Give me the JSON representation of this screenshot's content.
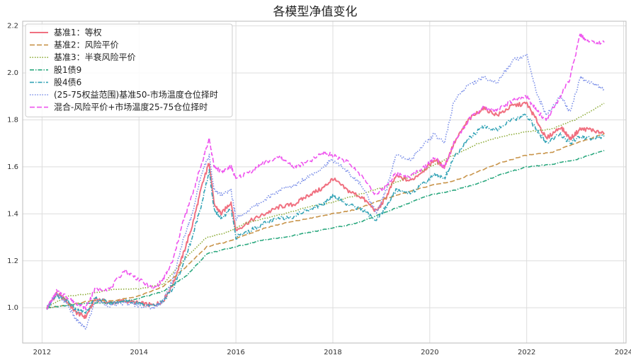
{
  "chart_data": {
    "type": "line",
    "title": "各模型净值变化",
    "xlabel": "",
    "ylabel": "",
    "xlim": [
      2011.6,
      2024.05
    ],
    "ylim": [
      0.85,
      2.22
    ],
    "xticks": [
      "2012",
      "2014",
      "2016",
      "2018",
      "2020",
      "2022",
      "2024"
    ],
    "yticks": [
      "1.0",
      "1.2",
      "1.4",
      "1.6",
      "1.8",
      "2.0",
      "2.2"
    ],
    "grid": true,
    "legend_position": "top-left",
    "series": [
      {
        "name": "基准1：等权",
        "color": "#f07080",
        "style": "solid",
        "points": [
          [
            2012.1,
            1.0
          ],
          [
            2012.3,
            1.06
          ],
          [
            2012.5,
            1.03
          ],
          [
            2012.7,
            0.98
          ],
          [
            2012.9,
            0.96
          ],
          [
            2013.1,
            1.04
          ],
          [
            2013.4,
            1.02
          ],
          [
            2013.7,
            1.03
          ],
          [
            2014.0,
            1.02
          ],
          [
            2014.3,
            1.01
          ],
          [
            2014.5,
            1.03
          ],
          [
            2014.7,
            1.1
          ],
          [
            2014.9,
            1.22
          ],
          [
            2015.1,
            1.35
          ],
          [
            2015.3,
            1.52
          ],
          [
            2015.45,
            1.62
          ],
          [
            2015.55,
            1.44
          ],
          [
            2015.7,
            1.4
          ],
          [
            2015.9,
            1.45
          ],
          [
            2016.0,
            1.33
          ],
          [
            2016.3,
            1.37
          ],
          [
            2016.6,
            1.4
          ],
          [
            2016.9,
            1.43
          ],
          [
            2017.2,
            1.44
          ],
          [
            2017.5,
            1.48
          ],
          [
            2017.8,
            1.51
          ],
          [
            2018.0,
            1.55
          ],
          [
            2018.3,
            1.5
          ],
          [
            2018.6,
            1.47
          ],
          [
            2018.9,
            1.41
          ],
          [
            2019.1,
            1.47
          ],
          [
            2019.3,
            1.56
          ],
          [
            2019.6,
            1.54
          ],
          [
            2019.9,
            1.59
          ],
          [
            2020.1,
            1.63
          ],
          [
            2020.3,
            1.6
          ],
          [
            2020.5,
            1.7
          ],
          [
            2020.8,
            1.8
          ],
          [
            2021.1,
            1.85
          ],
          [
            2021.4,
            1.82
          ],
          [
            2021.7,
            1.86
          ],
          [
            2022.0,
            1.87
          ],
          [
            2022.2,
            1.8
          ],
          [
            2022.4,
            1.72
          ],
          [
            2022.7,
            1.77
          ],
          [
            2022.9,
            1.72
          ],
          [
            2023.1,
            1.76
          ],
          [
            2023.3,
            1.76
          ],
          [
            2023.6,
            1.74
          ]
        ]
      },
      {
        "name": "基准2：风险平价",
        "color": "#c8944a",
        "style": "dashed",
        "points": [
          [
            2012.1,
            1.0
          ],
          [
            2012.5,
            1.01
          ],
          [
            2013.0,
            1.03
          ],
          [
            2013.5,
            1.03
          ],
          [
            2014.0,
            1.05
          ],
          [
            2014.5,
            1.09
          ],
          [
            2015.0,
            1.18
          ],
          [
            2015.4,
            1.26
          ],
          [
            2015.8,
            1.28
          ],
          [
            2016.2,
            1.31
          ],
          [
            2016.6,
            1.34
          ],
          [
            2017.0,
            1.36
          ],
          [
            2017.5,
            1.38
          ],
          [
            2018.0,
            1.4
          ],
          [
            2018.5,
            1.42
          ],
          [
            2019.0,
            1.46
          ],
          [
            2019.5,
            1.49
          ],
          [
            2020.0,
            1.52
          ],
          [
            2020.5,
            1.54
          ],
          [
            2021.0,
            1.58
          ],
          [
            2021.5,
            1.62
          ],
          [
            2022.0,
            1.65
          ],
          [
            2022.5,
            1.66
          ],
          [
            2023.0,
            1.7
          ],
          [
            2023.6,
            1.74
          ]
        ]
      },
      {
        "name": "基准3：半衰风险平价",
        "color": "#8fad3c",
        "style": "dotted",
        "points": [
          [
            2012.1,
            1.0
          ],
          [
            2012.5,
            1.05
          ],
          [
            2013.0,
            1.06
          ],
          [
            2013.5,
            1.08
          ],
          [
            2014.0,
            1.08
          ],
          [
            2014.5,
            1.1
          ],
          [
            2015.0,
            1.22
          ],
          [
            2015.4,
            1.3
          ],
          [
            2015.8,
            1.32
          ],
          [
            2016.2,
            1.36
          ],
          [
            2016.6,
            1.38
          ],
          [
            2017.0,
            1.4
          ],
          [
            2017.5,
            1.43
          ],
          [
            2018.0,
            1.45
          ],
          [
            2018.5,
            1.48
          ],
          [
            2019.0,
            1.51
          ],
          [
            2019.5,
            1.55
          ],
          [
            2020.0,
            1.6
          ],
          [
            2020.5,
            1.65
          ],
          [
            2021.0,
            1.7
          ],
          [
            2021.5,
            1.73
          ],
          [
            2022.0,
            1.75
          ],
          [
            2022.5,
            1.76
          ],
          [
            2023.0,
            1.8
          ],
          [
            2023.6,
            1.87
          ]
        ]
      },
      {
        "name": "股1债9",
        "color": "#2aa87e",
        "style": "dashdot",
        "points": [
          [
            2012.1,
            1.0
          ],
          [
            2012.5,
            1.01
          ],
          [
            2013.0,
            1.02
          ],
          [
            2013.5,
            1.02
          ],
          [
            2014.0,
            1.04
          ],
          [
            2014.5,
            1.07
          ],
          [
            2015.0,
            1.14
          ],
          [
            2015.4,
            1.23
          ],
          [
            2015.8,
            1.25
          ],
          [
            2016.2,
            1.27
          ],
          [
            2016.6,
            1.29
          ],
          [
            2017.0,
            1.3
          ],
          [
            2017.5,
            1.32
          ],
          [
            2018.0,
            1.34
          ],
          [
            2018.5,
            1.36
          ],
          [
            2019.0,
            1.4
          ],
          [
            2019.5,
            1.44
          ],
          [
            2020.0,
            1.48
          ],
          [
            2020.5,
            1.5
          ],
          [
            2021.0,
            1.53
          ],
          [
            2021.5,
            1.57
          ],
          [
            2022.0,
            1.6
          ],
          [
            2022.5,
            1.61
          ],
          [
            2023.0,
            1.63
          ],
          [
            2023.6,
            1.67
          ]
        ]
      },
      {
        "name": "股4债6",
        "color": "#33a3b6",
        "style": "dashdot",
        "points": [
          [
            2012.1,
            1.0
          ],
          [
            2012.3,
            1.05
          ],
          [
            2012.5,
            1.03
          ],
          [
            2012.7,
            0.99
          ],
          [
            2012.9,
            0.98
          ],
          [
            2013.1,
            1.04
          ],
          [
            2013.4,
            1.02
          ],
          [
            2013.7,
            1.03
          ],
          [
            2014.0,
            1.02
          ],
          [
            2014.3,
            1.01
          ],
          [
            2014.5,
            1.03
          ],
          [
            2014.7,
            1.08
          ],
          [
            2014.9,
            1.18
          ],
          [
            2015.1,
            1.3
          ],
          [
            2015.3,
            1.45
          ],
          [
            2015.45,
            1.58
          ],
          [
            2015.55,
            1.42
          ],
          [
            2015.7,
            1.38
          ],
          [
            2015.9,
            1.42
          ],
          [
            2016.0,
            1.3
          ],
          [
            2016.3,
            1.33
          ],
          [
            2016.6,
            1.36
          ],
          [
            2016.9,
            1.38
          ],
          [
            2017.2,
            1.39
          ],
          [
            2017.5,
            1.42
          ],
          [
            2017.8,
            1.44
          ],
          [
            2018.0,
            1.48
          ],
          [
            2018.3,
            1.44
          ],
          [
            2018.6,
            1.42
          ],
          [
            2018.9,
            1.37
          ],
          [
            2019.1,
            1.43
          ],
          [
            2019.3,
            1.5
          ],
          [
            2019.6,
            1.49
          ],
          [
            2019.9,
            1.53
          ],
          [
            2020.1,
            1.57
          ],
          [
            2020.3,
            1.55
          ],
          [
            2020.5,
            1.64
          ],
          [
            2020.8,
            1.72
          ],
          [
            2021.1,
            1.77
          ],
          [
            2021.4,
            1.76
          ],
          [
            2021.7,
            1.8
          ],
          [
            2022.0,
            1.82
          ],
          [
            2022.2,
            1.76
          ],
          [
            2022.4,
            1.7
          ],
          [
            2022.7,
            1.74
          ],
          [
            2022.9,
            1.7
          ],
          [
            2023.1,
            1.73
          ],
          [
            2023.3,
            1.72
          ],
          [
            2023.6,
            1.73
          ]
        ]
      },
      {
        "name": "(25-75权益范围)基准50-市场温度仓位择时",
        "color": "#7b8fe8",
        "style": "dotted",
        "points": [
          [
            2012.1,
            1.0
          ],
          [
            2012.3,
            1.06
          ],
          [
            2012.5,
            1.02
          ],
          [
            2012.7,
            0.95
          ],
          [
            2012.9,
            0.91
          ],
          [
            2013.1,
            1.03
          ],
          [
            2013.4,
            1.01
          ],
          [
            2013.7,
            1.02
          ],
          [
            2014.0,
            1.01
          ],
          [
            2014.3,
            1.0
          ],
          [
            2014.5,
            1.03
          ],
          [
            2014.7,
            1.12
          ],
          [
            2014.9,
            1.28
          ],
          [
            2015.1,
            1.4
          ],
          [
            2015.3,
            1.58
          ],
          [
            2015.45,
            1.65
          ],
          [
            2015.55,
            1.5
          ],
          [
            2015.7,
            1.48
          ],
          [
            2015.9,
            1.5
          ],
          [
            2016.0,
            1.38
          ],
          [
            2016.3,
            1.42
          ],
          [
            2016.6,
            1.46
          ],
          [
            2016.9,
            1.5
          ],
          [
            2017.2,
            1.52
          ],
          [
            2017.5,
            1.56
          ],
          [
            2017.8,
            1.6
          ],
          [
            2018.0,
            1.63
          ],
          [
            2018.3,
            1.58
          ],
          [
            2018.6,
            1.52
          ],
          [
            2018.9,
            1.4
          ],
          [
            2019.1,
            1.5
          ],
          [
            2019.3,
            1.65
          ],
          [
            2019.6,
            1.63
          ],
          [
            2019.9,
            1.7
          ],
          [
            2020.1,
            1.74
          ],
          [
            2020.3,
            1.7
          ],
          [
            2020.5,
            1.88
          ],
          [
            2020.8,
            1.95
          ],
          [
            2021.1,
            1.98
          ],
          [
            2021.4,
            1.96
          ],
          [
            2021.7,
            2.05
          ],
          [
            2022.0,
            2.08
          ],
          [
            2022.2,
            1.92
          ],
          [
            2022.4,
            1.82
          ],
          [
            2022.7,
            1.9
          ],
          [
            2022.9,
            1.83
          ],
          [
            2023.1,
            1.98
          ],
          [
            2023.3,
            1.96
          ],
          [
            2023.6,
            1.93
          ]
        ]
      },
      {
        "name": "混合-风险平价+市场温度25-75仓位择时",
        "color": "#ee55ee",
        "style": "dashed",
        "points": [
          [
            2012.1,
            1.0
          ],
          [
            2012.3,
            1.07
          ],
          [
            2012.5,
            1.05
          ],
          [
            2012.7,
            1.02
          ],
          [
            2012.9,
            1.0
          ],
          [
            2013.1,
            1.08
          ],
          [
            2013.4,
            1.08
          ],
          [
            2013.7,
            1.16
          ],
          [
            2014.0,
            1.12
          ],
          [
            2014.3,
            1.08
          ],
          [
            2014.5,
            1.12
          ],
          [
            2014.7,
            1.2
          ],
          [
            2014.9,
            1.36
          ],
          [
            2015.1,
            1.48
          ],
          [
            2015.3,
            1.62
          ],
          [
            2015.45,
            1.72
          ],
          [
            2015.55,
            1.6
          ],
          [
            2015.7,
            1.58
          ],
          [
            2015.9,
            1.6
          ],
          [
            2016.0,
            1.55
          ],
          [
            2016.3,
            1.58
          ],
          [
            2016.6,
            1.62
          ],
          [
            2016.9,
            1.64
          ],
          [
            2017.2,
            1.6
          ],
          [
            2017.5,
            1.62
          ],
          [
            2017.8,
            1.66
          ],
          [
            2018.0,
            1.65
          ],
          [
            2018.3,
            1.62
          ],
          [
            2018.6,
            1.56
          ],
          [
            2018.9,
            1.48
          ],
          [
            2019.1,
            1.52
          ],
          [
            2019.3,
            1.57
          ],
          [
            2019.6,
            1.56
          ],
          [
            2019.9,
            1.6
          ],
          [
            2020.1,
            1.64
          ],
          [
            2020.3,
            1.6
          ],
          [
            2020.5,
            1.7
          ],
          [
            2020.8,
            1.8
          ],
          [
            2021.1,
            1.85
          ],
          [
            2021.4,
            1.84
          ],
          [
            2021.7,
            1.88
          ],
          [
            2022.0,
            1.9
          ],
          [
            2022.2,
            1.84
          ],
          [
            2022.4,
            1.8
          ],
          [
            2022.7,
            1.9
          ],
          [
            2022.9,
            1.98
          ],
          [
            2023.1,
            2.16
          ],
          [
            2023.3,
            2.13
          ],
          [
            2023.6,
            2.13
          ]
        ]
      }
    ]
  }
}
